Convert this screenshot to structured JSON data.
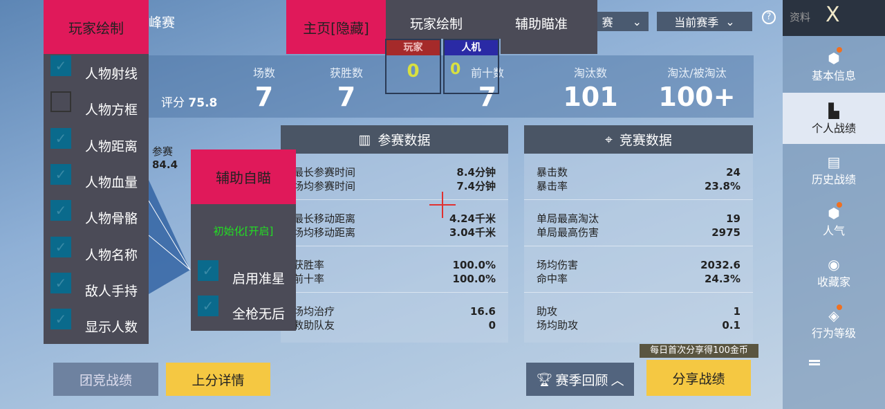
{
  "header": {
    "mode_partial": "峰赛",
    "mode_dropdown": "赛",
    "season_dropdown": "当前赛季",
    "help_icon": "question-circle-icon"
  },
  "sidebar": {
    "title": "资料",
    "close": "X",
    "items": [
      {
        "label": "基本信息",
        "icon": "profile-icon",
        "dot": true
      },
      {
        "label": "个人战绩",
        "icon": "chart-doc-icon",
        "active": true
      },
      {
        "label": "历史战绩",
        "icon": "doc-icon"
      },
      {
        "label": "人气",
        "icon": "popularity-icon",
        "dot": true
      },
      {
        "label": "收藏家",
        "icon": "collector-icon"
      },
      {
        "label": "行为等级",
        "icon": "behavior-icon",
        "dot": true
      }
    ],
    "more": "menu-icon"
  },
  "stats": {
    "rating_label": "评分",
    "rating": "75.8",
    "items": [
      {
        "label": "场数",
        "value": "7"
      },
      {
        "label": "获胜数",
        "value": "7"
      },
      {
        "label": "前十数",
        "value": "7"
      },
      {
        "label": "淘汰数",
        "value": "101"
      },
      {
        "label": "淘汰/被淘汰",
        "value": "100+"
      }
    ]
  },
  "radar": {
    "label": "参赛",
    "value": "84.4"
  },
  "participation": {
    "title": "参赛数据",
    "rows": [
      [
        [
          "最长参赛时间",
          "8.4分钟"
        ],
        [
          "场均参赛时间",
          "7.4分钟"
        ]
      ],
      [
        [
          "最长移动距离",
          "4.24千米"
        ],
        [
          "场均移动距离",
          "3.04千米"
        ]
      ],
      [
        [
          "获胜率",
          "100.0%"
        ],
        [
          "前十率",
          "100.0%"
        ]
      ],
      [
        [
          "场均治疗",
          "16.6"
        ],
        [
          "救助队友",
          "0"
        ]
      ]
    ]
  },
  "competition": {
    "title": "竞赛数据",
    "rows": [
      [
        [
          "暴击数",
          "24"
        ],
        [
          "暴击率",
          "23.8%"
        ]
      ],
      [
        [
          "单局最高淘汰",
          "19"
        ],
        [
          "单局最高伤害",
          "2975"
        ]
      ],
      [
        [
          "场均伤害",
          "2032.6"
        ],
        [
          "命中率",
          "24.3%"
        ]
      ],
      [
        [
          "助攻",
          "1"
        ],
        [
          "场均助攻",
          "0.1"
        ]
      ]
    ]
  },
  "bottom": {
    "team": "团竞战绩",
    "rank": "上分详情",
    "season_review": "赛季回顾",
    "share": "分享战绩",
    "share_banner": "每日首次分享得100金币"
  },
  "overlay": {
    "player_draw": {
      "title": "玩家绘制",
      "items": [
        {
          "label": "人物射线",
          "checked": true
        },
        {
          "label": "人物方框",
          "checked": false
        },
        {
          "label": "人物距离",
          "checked": true
        },
        {
          "label": "人物血量",
          "checked": true
        },
        {
          "label": "人物骨骼",
          "checked": true
        },
        {
          "label": "人物名称",
          "checked": true
        },
        {
          "label": "敌人手持",
          "checked": true
        },
        {
          "label": "显示人数",
          "checked": true
        }
      ]
    },
    "tabs": {
      "home": "主页[隐藏]",
      "draw": "玩家绘制",
      "aim": "辅助瞄准"
    },
    "counters": {
      "player_label": "玩家",
      "player_count": "0",
      "bot_label": "人机",
      "bot_count": "0",
      "player_color": "#a52a2a",
      "bot_color": "#2a2aa5"
    },
    "aimbot": {
      "title": "辅助自瞄",
      "status": "初始化[开启]",
      "items": [
        {
          "label": "启用准星",
          "checked": true
        },
        {
          "label": "全枪无后",
          "checked": true
        }
      ]
    }
  },
  "colors": {
    "accent": "#e0195a",
    "panel": "#4b4b57",
    "checkbox": "#0a6a8c",
    "status_green": "#22e022",
    "yellow_btn": "#f5c842"
  }
}
